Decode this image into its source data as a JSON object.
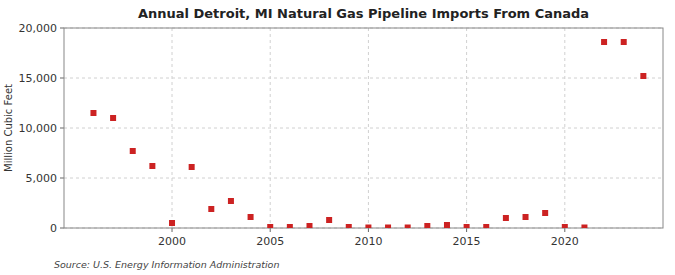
{
  "chart_data": {
    "type": "scatter",
    "title": "Annual Detroit, MI Natural Gas Pipeline Imports From Canada",
    "ylabel": "Million Cubic Feet",
    "annotations": [
      "Source: U.S. Energy Information Administration"
    ],
    "color": "#cc2222",
    "marker": "square",
    "grid": true,
    "xlim": [
      1994.5,
      2025
    ],
    "ylim": [
      0,
      20000
    ],
    "xticks": [
      2000,
      2005,
      2010,
      2015,
      2020
    ],
    "yticks": [
      0,
      {
        "value": 5000,
        "label": "5,000"
      },
      {
        "value": 10000,
        "label": "10,000"
      },
      {
        "value": 15000,
        "label": "15,000"
      },
      {
        "value": 20000,
        "label": "20,000"
      }
    ],
    "x": [
      1996,
      1997,
      1998,
      1999,
      2000,
      2001,
      2002,
      2003,
      2004,
      2005,
      2006,
      2007,
      2008,
      2009,
      2010,
      2011,
      2012,
      2013,
      2014,
      2015,
      2016,
      2017,
      2018,
      2019,
      2020,
      2021,
      2022,
      2023,
      2024
    ],
    "values": [
      11500,
      11000,
      7700,
      6200,
      500,
      6100,
      1900,
      2700,
      1100,
      100,
      100,
      200,
      800,
      100,
      50,
      50,
      50,
      200,
      300,
      100,
      100,
      1000,
      1100,
      1500,
      100,
      50,
      18600,
      18600,
      15200
    ]
  }
}
